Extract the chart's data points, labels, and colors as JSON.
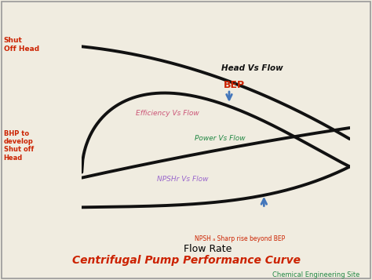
{
  "title": "Centrifugal Pump Performance Curve",
  "subtitle": "Chemical Engineering Site",
  "xlabel": "Flow Rate",
  "bg_color": "#f0ece0",
  "border_color": "#999999",
  "title_color": "#cc2200",
  "subtitle_color": "#228844",
  "curve_color": "#111111",
  "head_label": "Head Vs Flow",
  "head_label_color": "#111111",
  "eff_label": "Efficiency Vs Flow",
  "eff_label_color": "#cc5577",
  "power_label": "Power Vs Flow",
  "power_label_color": "#228844",
  "npshr_label": "NPSHr Vs Flow",
  "npshr_label_color": "#9966cc",
  "bep_label": "BEP",
  "bep_color": "#cc2200",
  "npsha_label": "NPSH ₐ Sharp rise beyond BEP",
  "npsha_color": "#cc2200",
  "shut_off_head_label": "Shut\nOff Head",
  "shut_off_head_color": "#cc2200",
  "bhp_label": "BHP to\ndevelop\nShut off\nHead",
  "bhp_color": "#cc2200",
  "arrow_color": "#4477bb",
  "lw": 2.8
}
